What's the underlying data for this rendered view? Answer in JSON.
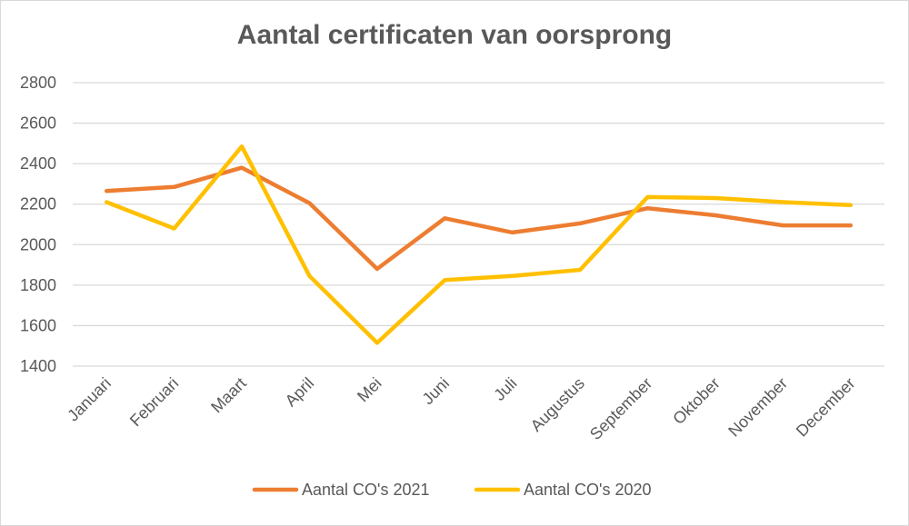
{
  "chart_data": {
    "type": "line",
    "title": "Aantal certificaten van oorsprong",
    "categories": [
      "Januari",
      "Februari",
      "Maart",
      "April",
      "Mei",
      "Juni",
      "Juli",
      "Augustus",
      "September",
      "Oktober",
      "November",
      "December"
    ],
    "series": [
      {
        "name": "Aantal CO's 2021",
        "color": "#ED7D31",
        "values": [
          2265,
          2285,
          2380,
          2205,
          1880,
          2130,
          2060,
          2105,
          2180,
          2145,
          2095,
          2095
        ]
      },
      {
        "name": "Aantal CO's 2020",
        "color": "#FFC000",
        "values": [
          2210,
          2080,
          2485,
          1845,
          1515,
          1825,
          1845,
          1875,
          2235,
          2230,
          2210,
          2195
        ]
      }
    ],
    "y_ticks": [
      1400,
      1600,
      1800,
      2000,
      2200,
      2400,
      2600,
      2800
    ],
    "ylim": [
      1400,
      2800
    ],
    "grid": true,
    "legend_position": "bottom",
    "gridline_color": "#d9d9d9"
  }
}
